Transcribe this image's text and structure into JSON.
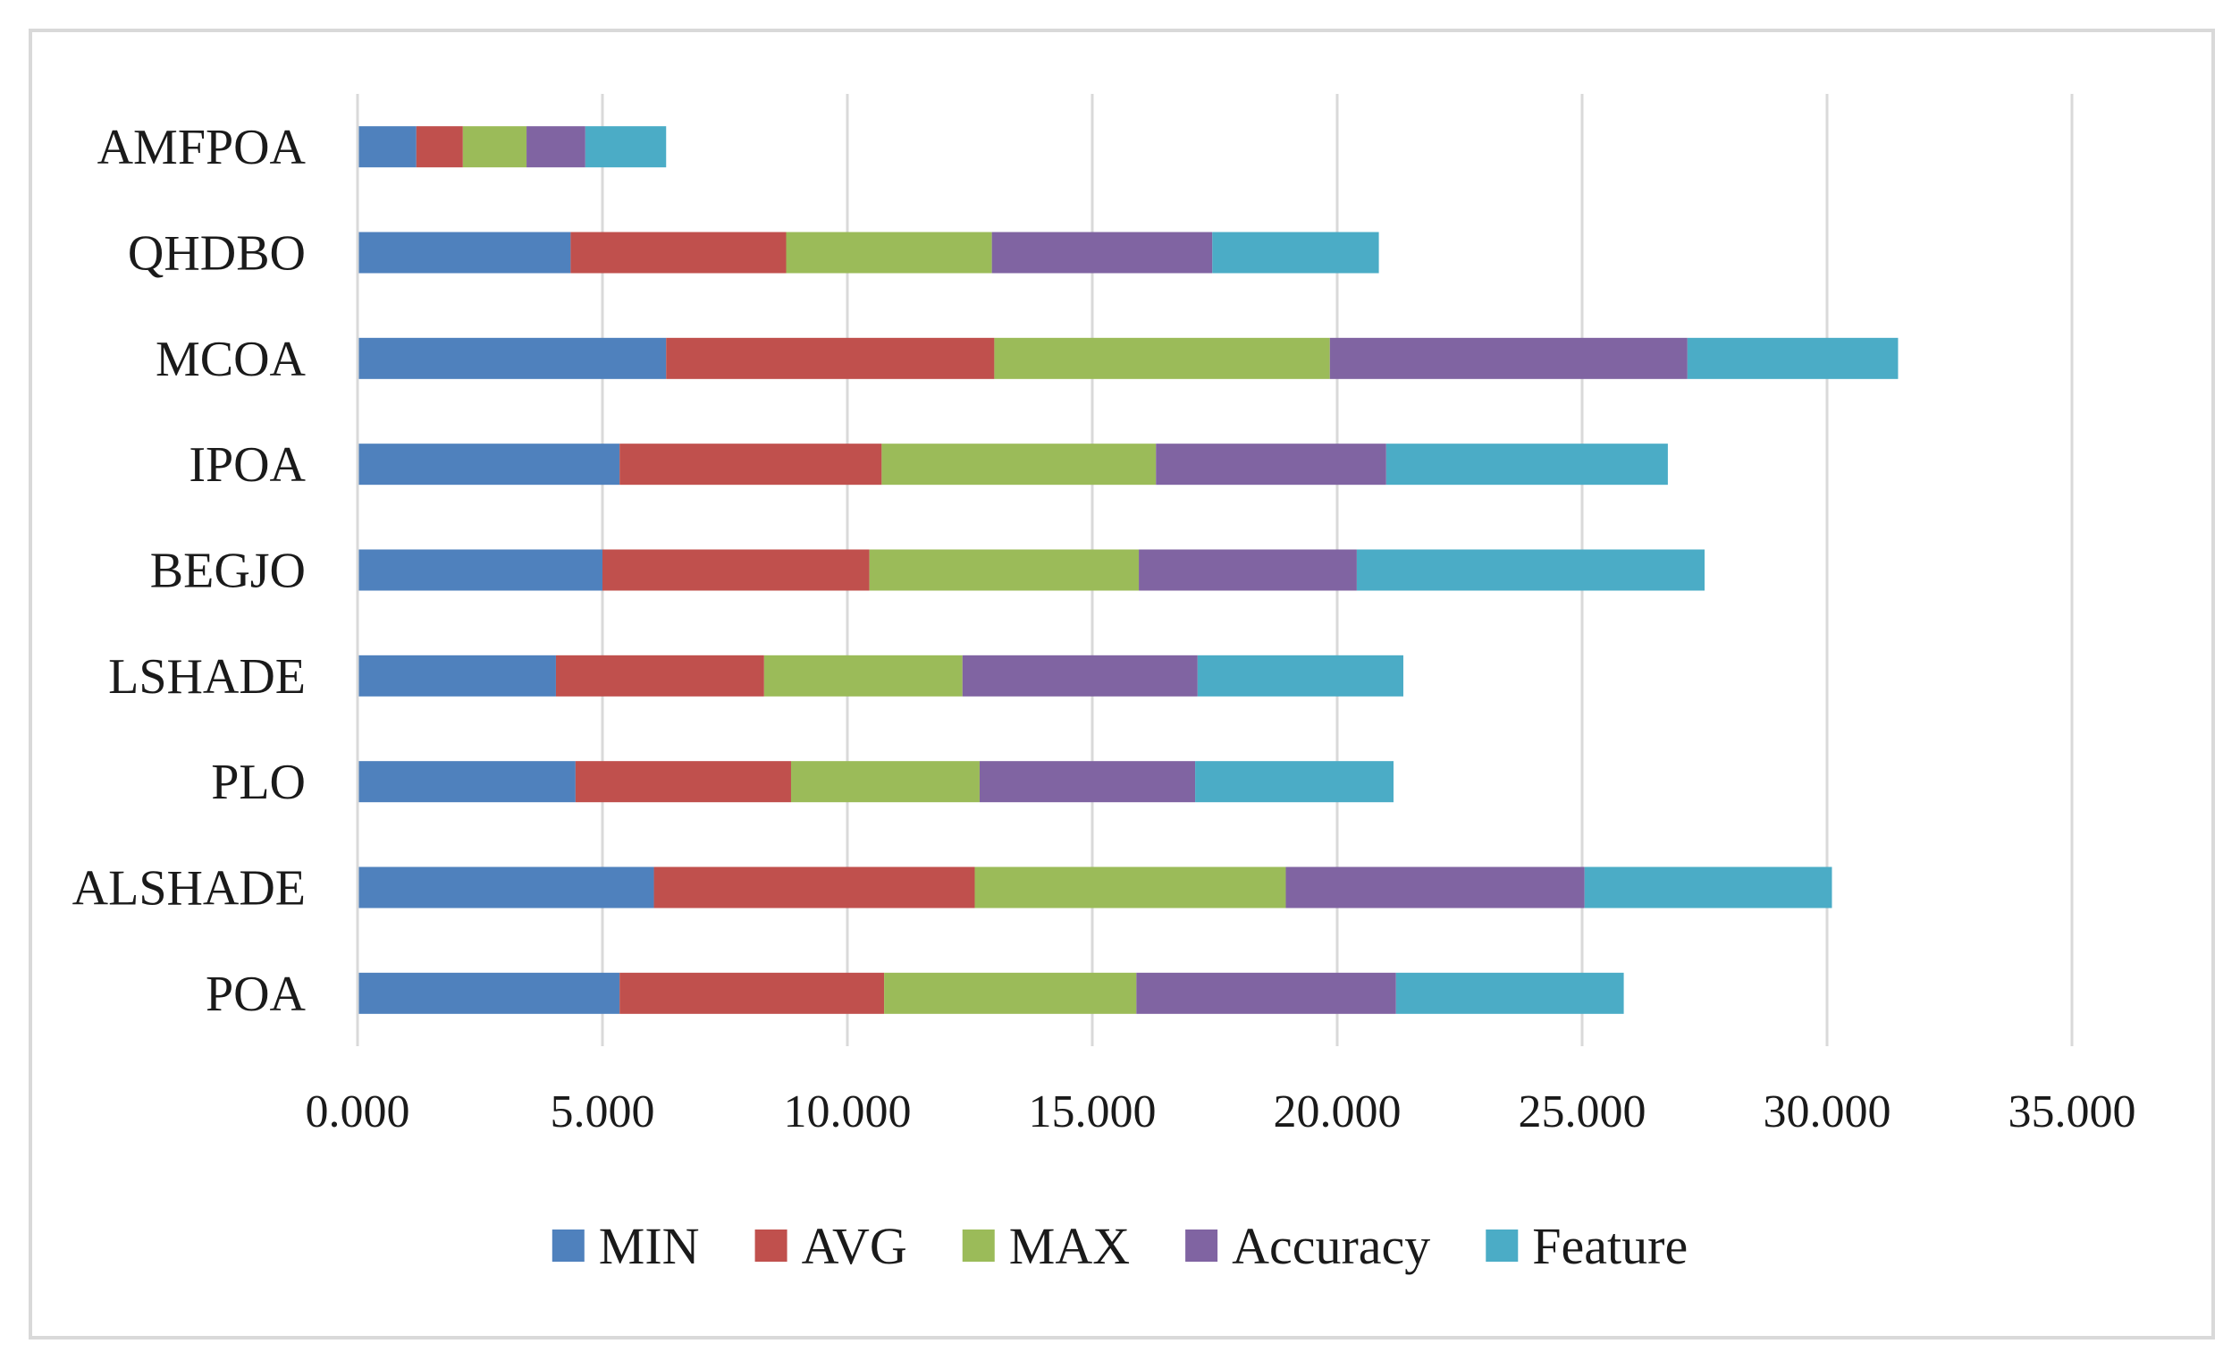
{
  "chart_data": {
    "type": "bar",
    "orientation": "horizontal",
    "stacked": true,
    "title": "",
    "xlabel": "",
    "ylabel": "",
    "xlim": [
      0,
      35
    ],
    "x_ticks": [
      0,
      5,
      10,
      15,
      20,
      25,
      30,
      35
    ],
    "x_tick_labels": [
      "0.000",
      "5.000",
      "10.000",
      "15.000",
      "20.000",
      "25.000",
      "30.000",
      "35.000"
    ],
    "grid": "vertical",
    "legend_position": "bottom",
    "categories": [
      "AMFPOA",
      "QHDBO",
      "MCOA",
      "IPOA",
      "BEGJO",
      "LSHADE",
      "PLO",
      "ALSHADE",
      "POA"
    ],
    "series": [
      {
        "name": "MIN",
        "color": "#4f81bd",
        "values": [
          1.2,
          4.35,
          6.3,
          5.35,
          5.0,
          4.05,
          4.45,
          6.05,
          5.35
        ]
      },
      {
        "name": "AVG",
        "color": "#c0504d",
        "values": [
          0.95,
          4.4,
          6.7,
          5.35,
          5.45,
          4.25,
          4.4,
          6.55,
          5.4
        ]
      },
      {
        "name": "MAX",
        "color": "#9bbb59",
        "values": [
          1.3,
          4.2,
          6.85,
          5.6,
          5.5,
          4.05,
          3.85,
          6.35,
          5.15
        ]
      },
      {
        "name": "Accuracy",
        "color": "#8064a2",
        "values": [
          1.2,
          4.5,
          7.3,
          4.7,
          4.45,
          4.8,
          4.4,
          6.1,
          5.3
        ]
      },
      {
        "name": "Feature",
        "color": "#4bacc6",
        "values": [
          1.65,
          3.4,
          4.3,
          5.75,
          7.1,
          4.2,
          4.05,
          5.05,
          4.65
        ]
      }
    ]
  }
}
